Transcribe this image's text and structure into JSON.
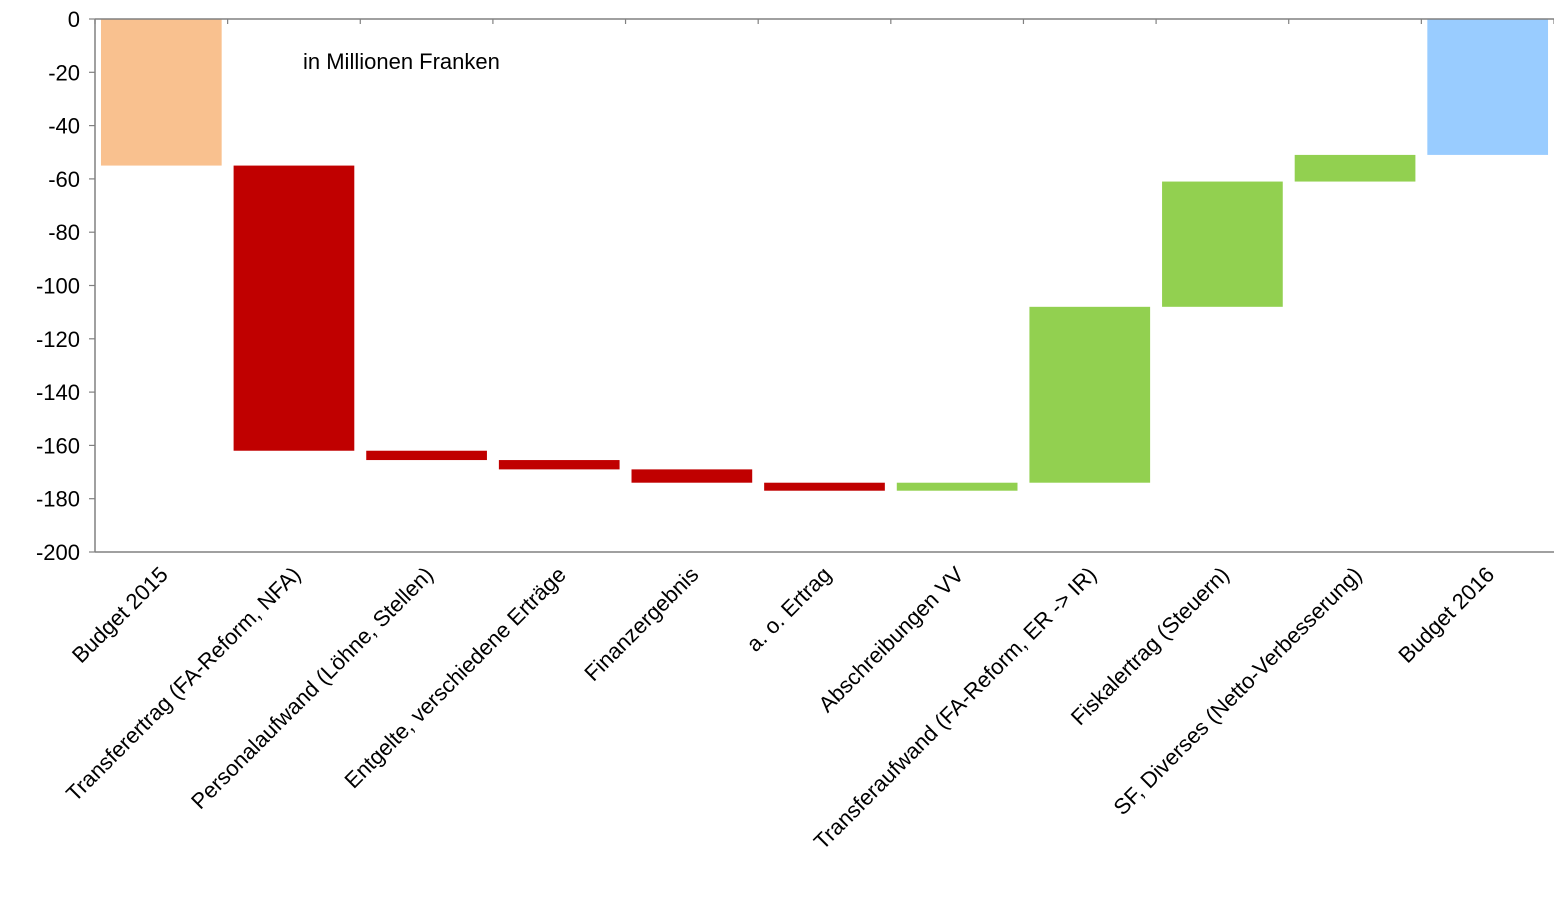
{
  "chart_data": {
    "type": "bar",
    "subtype": "waterfall",
    "note": "in Millionen Franken",
    "categories": [
      "Budget 2015",
      "Transferertrag (FA-Reform, NFA)",
      "Personalaufwand (Löhne, Stellen)",
      "Entgelte, verschiedene Erträge",
      "Finanzergebnis",
      "a. o. Ertrag",
      "Abschreibungen VV",
      "Transferaufwand (FA-Reform, ER -> IR)",
      "Fiskalertrag (Steuern)",
      "SF, Diverses (Netto-Verbesserung)",
      "Budget 2016"
    ],
    "bars": [
      {
        "start": 0,
        "end": -55,
        "kind": "total"
      },
      {
        "start": -55,
        "end": -162,
        "kind": "decrease"
      },
      {
        "start": -162,
        "end": -165.5,
        "kind": "decrease"
      },
      {
        "start": -165.5,
        "end": -169,
        "kind": "decrease"
      },
      {
        "start": -169,
        "end": -174,
        "kind": "decrease"
      },
      {
        "start": -174,
        "end": -177,
        "kind": "decrease"
      },
      {
        "start": -177,
        "end": -174,
        "kind": "increase"
      },
      {
        "start": -174,
        "end": -108,
        "kind": "increase"
      },
      {
        "start": -108,
        "end": -61,
        "kind": "increase"
      },
      {
        "start": -61,
        "end": -51,
        "kind": "increase"
      },
      {
        "start": 0,
        "end": -51,
        "kind": "total-end"
      }
    ],
    "yticks": [
      0,
      -20,
      -40,
      -60,
      -80,
      -100,
      -120,
      -140,
      -160,
      -180,
      -200
    ],
    "ylim": [
      -200,
      0
    ],
    "grid": false,
    "colors": {
      "total": "#F9C18F",
      "decrease": "#C00000",
      "increase": "#92D050",
      "total-end": "#99CCFF",
      "axis": "#808080"
    }
  }
}
